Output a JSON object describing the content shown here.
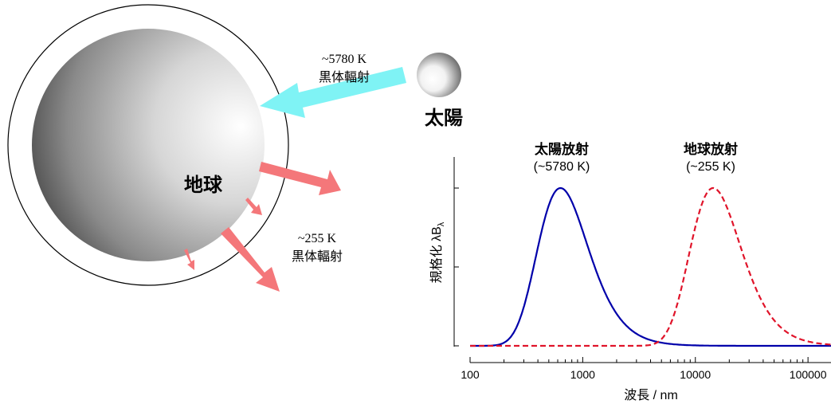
{
  "labels": {
    "earth": "地球",
    "sun": "太陽",
    "incoming_temp": "~5780 K",
    "incoming_type": "黒体輻射",
    "outgoing_temp": "~255 K",
    "outgoing_type": "黒体輻射"
  },
  "colors": {
    "incoming_arrow": "#7ff3f5",
    "outgoing_arrow": "#f4777a",
    "solar_curve": "#0000aa",
    "earth_curve": "#e0142a"
  },
  "chart_data": {
    "type": "line",
    "xlabel": "波長 / nm",
    "ylabel": "規格化 λB",
    "ylabel_sub": "λ",
    "xscale": "log",
    "xlim": [
      100,
      160000
    ],
    "xticks": [
      100,
      1000,
      10000,
      100000
    ],
    "xtick_labels": [
      "100",
      "1000",
      "10000",
      "100000"
    ],
    "ylim": [
      0,
      1.05
    ],
    "series": [
      {
        "name": "太陽放射",
        "subtitle": "(~5780 K)",
        "temperature": 5780,
        "style": "solid",
        "color": "#0000aa"
      },
      {
        "name": "地球放射",
        "subtitle": "(~255 K)",
        "temperature": 255,
        "style": "dashed",
        "color": "#e0142a"
      }
    ]
  }
}
